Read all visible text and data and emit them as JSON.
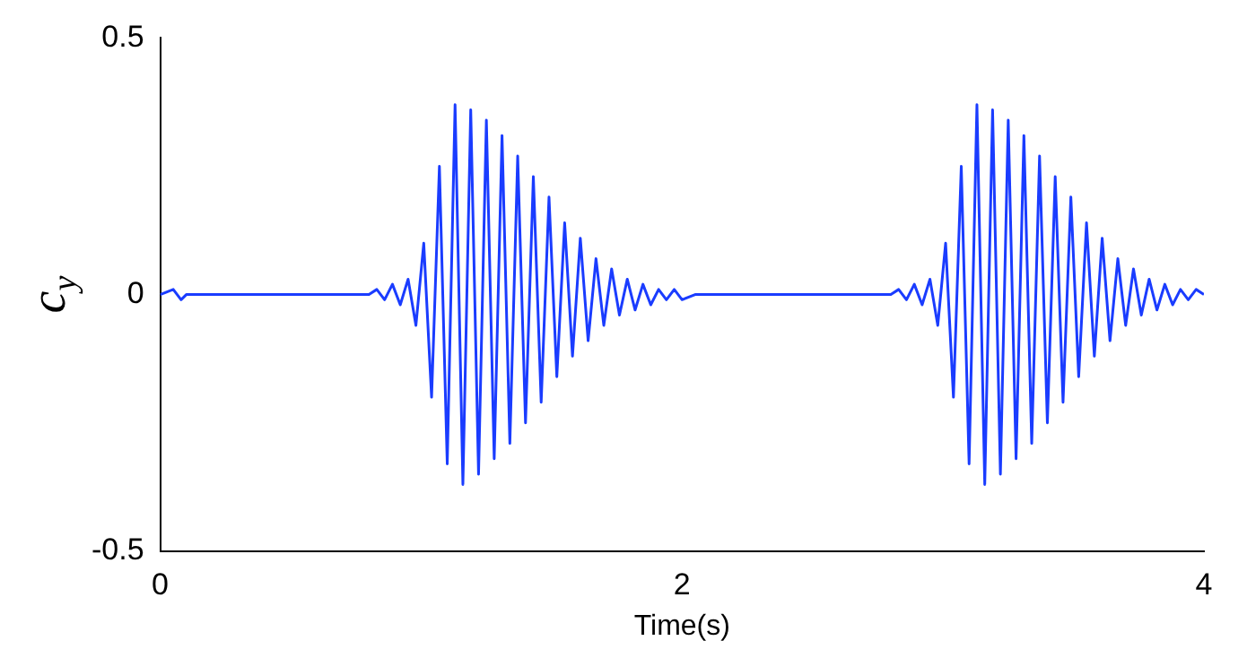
{
  "chart_data": {
    "type": "line",
    "xlabel": "Time(s)",
    "ylabel": "c$_{y}$",
    "xlim": [
      0,
      4
    ],
    "xticks": [
      0,
      2,
      4
    ],
    "ylim": [
      -0.5,
      0.5
    ],
    "yticks": [
      -0.5,
      0,
      0.5
    ],
    "grid": false,
    "legend": false,
    "marker": "none",
    "line_style": "solid",
    "series": [
      {
        "color": "#1a3cff",
        "x": [
          0,
          0.05,
          0.08,
          0.1,
          0.8,
          0.83,
          0.86,
          0.89,
          0.92,
          0.95,
          0.98,
          1.01,
          1.04,
          1.07,
          1.1,
          1.13,
          1.16,
          1.19,
          1.22,
          1.25,
          1.28,
          1.31,
          1.34,
          1.37,
          1.4,
          1.43,
          1.46,
          1.49,
          1.52,
          1.55,
          1.58,
          1.61,
          1.64,
          1.67,
          1.7,
          1.73,
          1.76,
          1.79,
          1.82,
          1.85,
          1.88,
          1.91,
          1.94,
          1.97,
          2.0,
          2.05,
          2.8,
          2.83,
          2.86,
          2.89,
          2.92,
          2.95,
          2.98,
          3.01,
          3.04,
          3.07,
          3.1,
          3.13,
          3.16,
          3.19,
          3.22,
          3.25,
          3.28,
          3.31,
          3.34,
          3.37,
          3.4,
          3.43,
          3.46,
          3.49,
          3.52,
          3.55,
          3.58,
          3.61,
          3.64,
          3.67,
          3.7,
          3.73,
          3.76,
          3.79,
          3.82,
          3.85,
          3.88,
          3.91,
          3.94,
          3.97,
          4.0
        ],
        "values": [
          0,
          0.01,
          -0.01,
          0,
          0,
          0.01,
          -0.01,
          0.02,
          -0.02,
          0.03,
          -0.06,
          0.1,
          -0.2,
          0.25,
          -0.33,
          0.37,
          -0.37,
          0.36,
          -0.35,
          0.34,
          -0.32,
          0.31,
          -0.29,
          0.27,
          -0.25,
          0.23,
          -0.21,
          0.19,
          -0.16,
          0.14,
          -0.12,
          0.11,
          -0.09,
          0.07,
          -0.06,
          0.05,
          -0.04,
          0.03,
          -0.03,
          0.02,
          -0.02,
          0.01,
          -0.01,
          0.01,
          -0.01,
          0,
          0,
          0.01,
          -0.01,
          0.02,
          -0.02,
          0.03,
          -0.06,
          0.1,
          -0.2,
          0.25,
          -0.33,
          0.37,
          -0.37,
          0.36,
          -0.35,
          0.34,
          -0.32,
          0.31,
          -0.29,
          0.27,
          -0.25,
          0.23,
          -0.21,
          0.19,
          -0.16,
          0.14,
          -0.12,
          0.11,
          -0.09,
          0.07,
          -0.06,
          0.05,
          -0.04,
          0.03,
          -0.03,
          0.02,
          -0.02,
          0.01,
          -0.01,
          0.01,
          0
        ]
      }
    ]
  }
}
